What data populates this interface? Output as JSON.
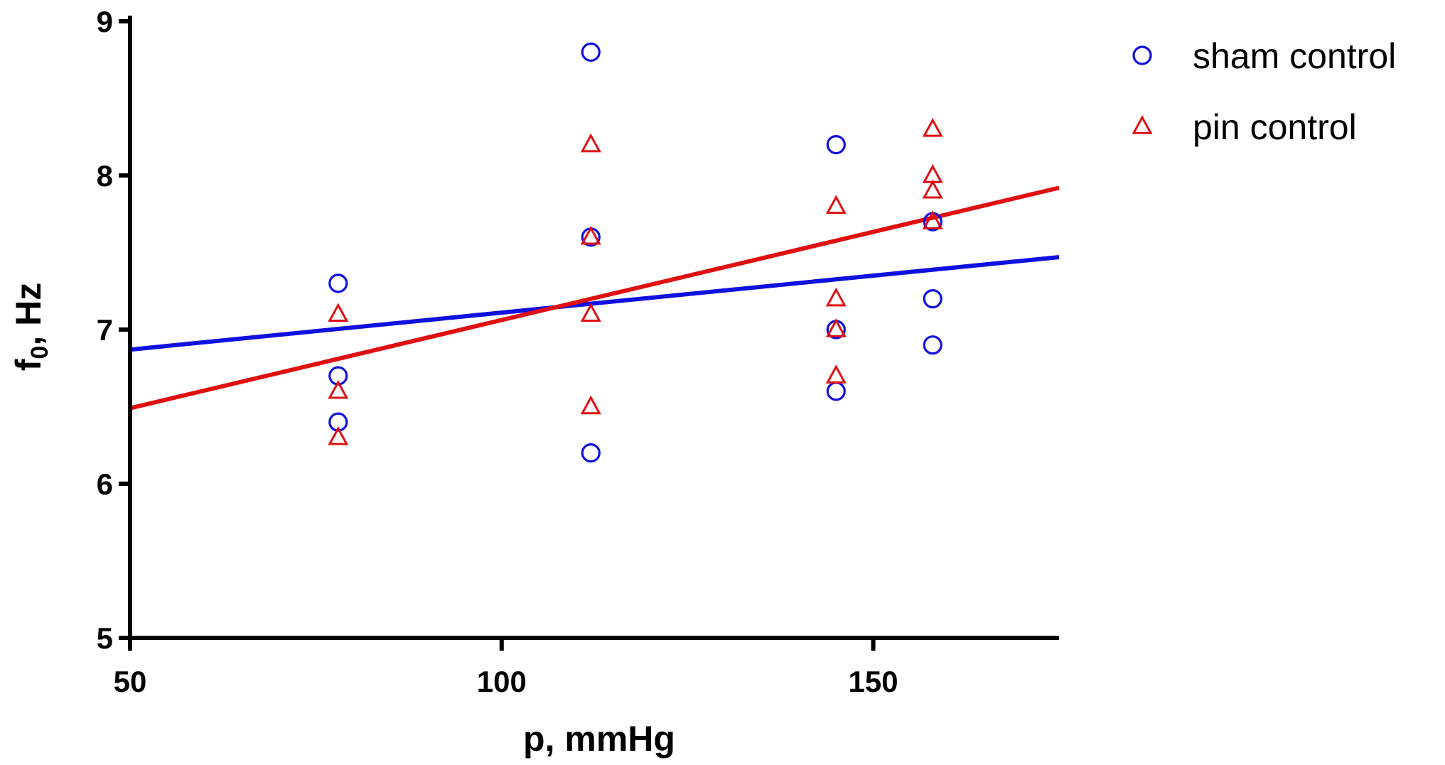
{
  "chart_data": {
    "type": "scatter",
    "xlabel": "p, mmHg",
    "ylabel_main": "f",
    "ylabel_sub": "0",
    "ylabel_rest": ", Hz",
    "xlim": [
      50,
      175
    ],
    "ylim": [
      5,
      9
    ],
    "xticks": [
      50,
      100,
      150
    ],
    "yticks": [
      5,
      6,
      7,
      8,
      9
    ],
    "grid": false,
    "legend_position": "top-right, outside plot",
    "series": [
      {
        "name": "sham control",
        "marker": "circle",
        "color": "#1010e0",
        "points": [
          [
            78,
            7.3
          ],
          [
            78,
            6.7
          ],
          [
            78,
            6.4
          ],
          [
            112,
            8.8
          ],
          [
            112,
            7.6
          ],
          [
            112,
            6.2
          ],
          [
            145,
            8.2
          ],
          [
            145,
            7.0
          ],
          [
            145,
            6.6
          ],
          [
            158,
            7.7
          ],
          [
            158,
            7.2
          ],
          [
            158,
            6.9
          ]
        ],
        "fit": [
          [
            50,
            6.87
          ],
          [
            175,
            7.47
          ]
        ]
      },
      {
        "name": "pin control",
        "marker": "triangle",
        "color": "#e01010",
        "points": [
          [
            78,
            7.1
          ],
          [
            78,
            6.6
          ],
          [
            78,
            6.3
          ],
          [
            112,
            8.2
          ],
          [
            112,
            7.6
          ],
          [
            112,
            7.1
          ],
          [
            112,
            6.5
          ],
          [
            145,
            7.8
          ],
          [
            145,
            7.2
          ],
          [
            145,
            7.0
          ],
          [
            145,
            6.7
          ],
          [
            158,
            8.3
          ],
          [
            158,
            8.0
          ],
          [
            158,
            7.9
          ],
          [
            158,
            7.7
          ]
        ],
        "fit": [
          [
            50,
            6.49
          ],
          [
            175,
            7.92
          ]
        ]
      }
    ]
  }
}
